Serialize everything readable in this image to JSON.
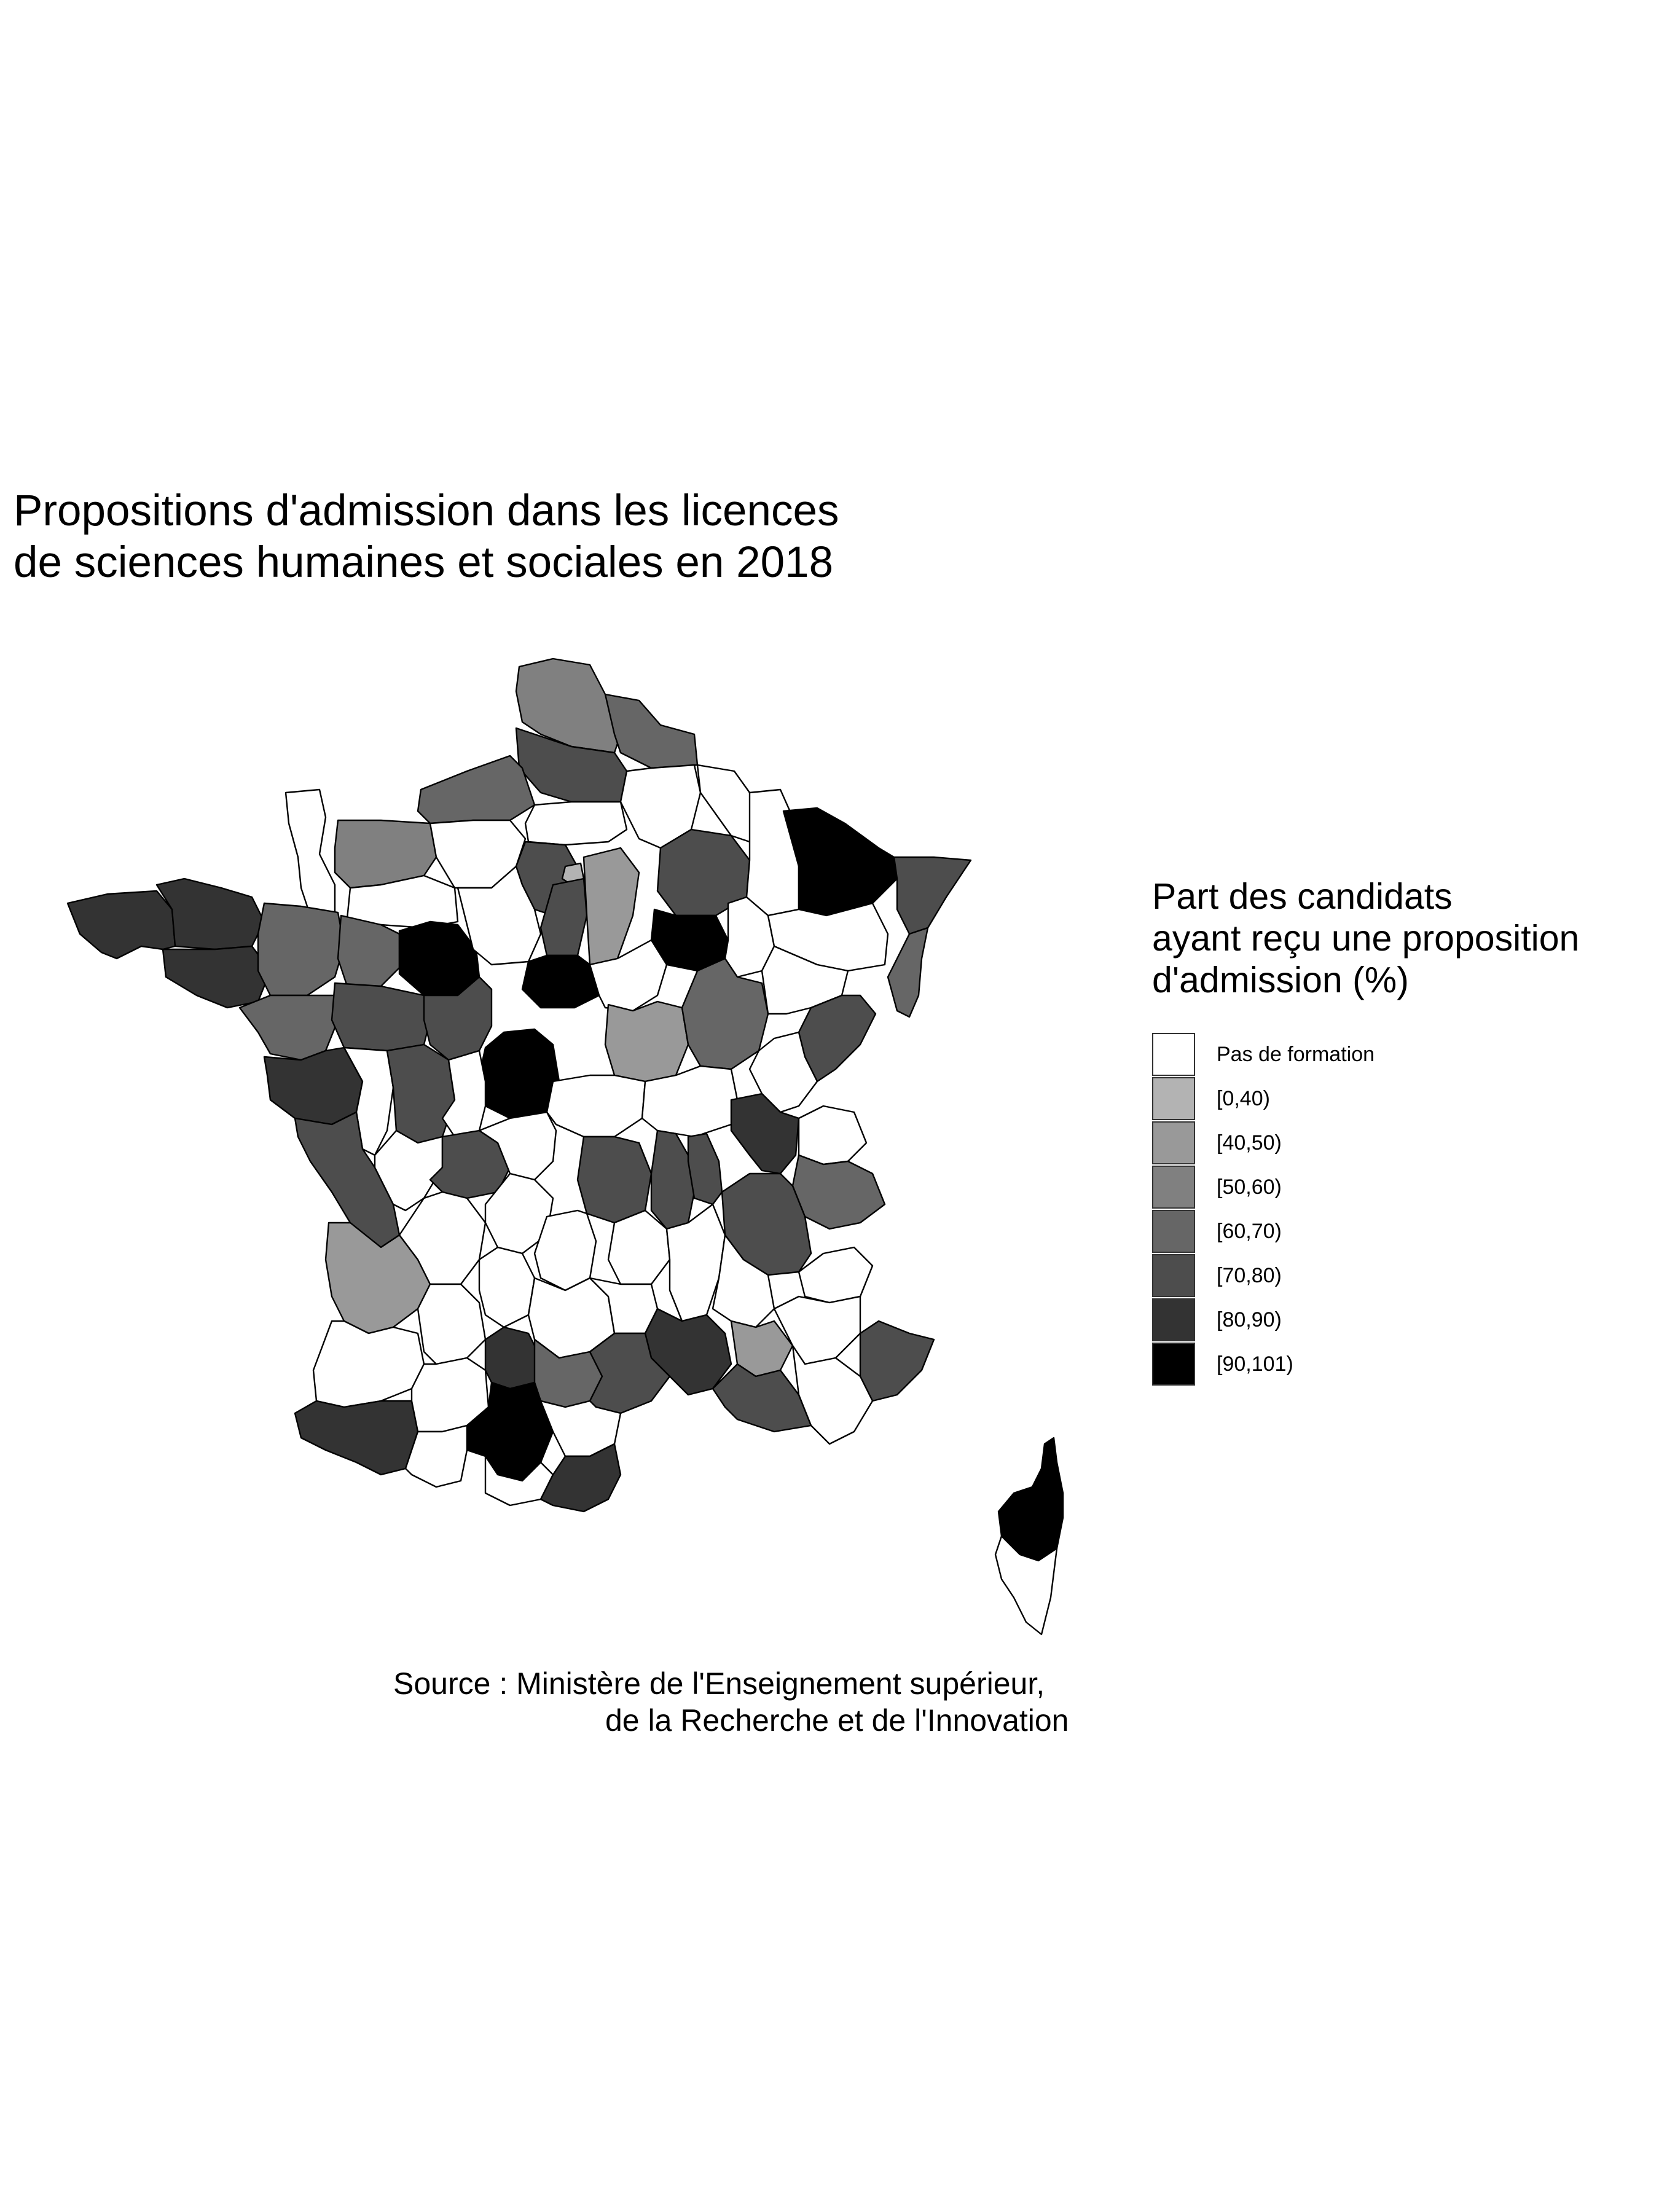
{
  "title": {
    "line1": "Propositions d'admission dans les licences",
    "line2": "de sciences humaines et sociales en 2018"
  },
  "legend": {
    "title_line1": "Part des candidats",
    "title_line2": "ayant reçu une proposition",
    "title_line3": "d'admission (%)",
    "items": [
      {
        "label": "Pas de formation",
        "color": "#ffffff"
      },
      {
        "label": "[0,40)",
        "color": "#b3b3b3"
      },
      {
        "label": "[40,50)",
        "color": "#999999"
      },
      {
        "label": "[50,60)",
        "color": "#808080"
      },
      {
        "label": "[60,70)",
        "color": "#666666"
      },
      {
        "label": "[70,80)",
        "color": "#4d4d4d"
      },
      {
        "label": "[80,90)",
        "color": "#333333"
      },
      {
        "label": "[90,101)",
        "color": "#000000"
      }
    ]
  },
  "source": {
    "line1": "Source : Ministère de l'Enseignement supérieur,",
    "line2": "de la Recherche et de l'Innovation"
  },
  "map_regions": [
    {
      "name": "nord",
      "class": 3
    },
    {
      "name": "pas-de-calais",
      "class": 4
    },
    {
      "name": "somme",
      "class": 5
    },
    {
      "name": "aisne",
      "class": 0
    },
    {
      "name": "ardennes",
      "class": 0
    },
    {
      "name": "seine-maritime",
      "class": 4
    },
    {
      "name": "manche",
      "class": 0
    },
    {
      "name": "calvados",
      "class": 3
    },
    {
      "name": "orne",
      "class": 0
    },
    {
      "name": "eure",
      "class": 0
    },
    {
      "name": "oise",
      "class": 0
    },
    {
      "name": "val-d-oise",
      "class": 5
    },
    {
      "name": "paris",
      "class": 1
    },
    {
      "name": "essonne",
      "class": 5
    },
    {
      "name": "seine-et-marne",
      "class": 2
    },
    {
      "name": "marne",
      "class": 5
    },
    {
      "name": "meuse",
      "class": 0
    },
    {
      "name": "moselle",
      "class": 7
    },
    {
      "name": "bas-rhin",
      "class": 5
    },
    {
      "name": "haut-rhin",
      "class": 4
    },
    {
      "name": "finistere",
      "class": 6
    },
    {
      "name": "cotes-d-armor",
      "class": 6
    },
    {
      "name": "morbihan",
      "class": 6
    },
    {
      "name": "ille-et-vilaine",
      "class": 4
    },
    {
      "name": "mayenne",
      "class": 4
    },
    {
      "name": "sarthe",
      "class": 7
    },
    {
      "name": "eure-et-loir",
      "class": 0
    },
    {
      "name": "loiret",
      "class": 7
    },
    {
      "name": "aube",
      "class": 7
    },
    {
      "name": "haute-marne",
      "class": 0
    },
    {
      "name": "vosges",
      "class": 0
    },
    {
      "name": "loire-atlantique",
      "class": 4
    },
    {
      "name": "maine-et-loire",
      "class": 5
    },
    {
      "name": "indre-et-loire",
      "class": 5
    },
    {
      "name": "cher",
      "class": 7
    },
    {
      "name": "yonne",
      "class": 0
    },
    {
      "name": "nievre",
      "class": 2
    },
    {
      "name": "cote-d-or",
      "class": 4
    },
    {
      "name": "haute-saone",
      "class": 0
    },
    {
      "name": "doubs",
      "class": 5
    },
    {
      "name": "vendee",
      "class": 6
    },
    {
      "name": "deux-sevres",
      "class": 0
    },
    {
      "name": "vienne",
      "class": 5
    },
    {
      "name": "indre",
      "class": 0
    },
    {
      "name": "allier",
      "class": 0
    },
    {
      "name": "saone-et-loire",
      "class": 0
    },
    {
      "name": "jura",
      "class": 0
    },
    {
      "name": "charente-maritime",
      "class": 5
    },
    {
      "name": "charente",
      "class": 0
    },
    {
      "name": "haute-vienne",
      "class": 5
    },
    {
      "name": "creuse",
      "class": 0
    },
    {
      "name": "puy-de-dome",
      "class": 5
    },
    {
      "name": "loire",
      "class": 5
    },
    {
      "name": "rhone",
      "class": 5
    },
    {
      "name": "ain",
      "class": 6
    },
    {
      "name": "haute-savoie",
      "class": 0
    },
    {
      "name": "savoie",
      "class": 4
    },
    {
      "name": "isere",
      "class": 5
    },
    {
      "name": "gironde",
      "class": 2
    },
    {
      "name": "dordogne",
      "class": 0
    },
    {
      "name": "correze",
      "class": 0
    },
    {
      "name": "cantal",
      "class": 0
    },
    {
      "name": "haute-loire",
      "class": 0
    },
    {
      "name": "ardeche",
      "class": 0
    },
    {
      "name": "drome",
      "class": 0
    },
    {
      "name": "hautes-alpes",
      "class": 0
    },
    {
      "name": "landes",
      "class": 0
    },
    {
      "name": "lot-et-garonne",
      "class": 0
    },
    {
      "name": "lot",
      "class": 0
    },
    {
      "name": "aveyron",
      "class": 0
    },
    {
      "name": "lozere",
      "class": 0
    },
    {
      "name": "gard",
      "class": 6
    },
    {
      "name": "vaucluse",
      "class": 2
    },
    {
      "name": "alpes-de-haute-provence",
      "class": 0
    },
    {
      "name": "alpes-maritimes",
      "class": 5
    },
    {
      "name": "pyrenees-atlantiques",
      "class": 6
    },
    {
      "name": "gers",
      "class": 0
    },
    {
      "name": "tarn-et-garonne",
      "class": 6
    },
    {
      "name": "tarn",
      "class": 4
    },
    {
      "name": "herault",
      "class": 5
    },
    {
      "name": "bouches-du-rhone",
      "class": 5
    },
    {
      "name": "var",
      "class": 0
    },
    {
      "name": "haute-garonne",
      "class": 7
    },
    {
      "name": "hautes-pyrenees",
      "class": 0
    },
    {
      "name": "ariege",
      "class": 0
    },
    {
      "name": "aude",
      "class": 0
    },
    {
      "name": "pyrenees-orientales",
      "class": 6
    },
    {
      "name": "haute-corse",
      "class": 7
    },
    {
      "name": "corse-du-sud",
      "class": 0
    }
  ]
}
